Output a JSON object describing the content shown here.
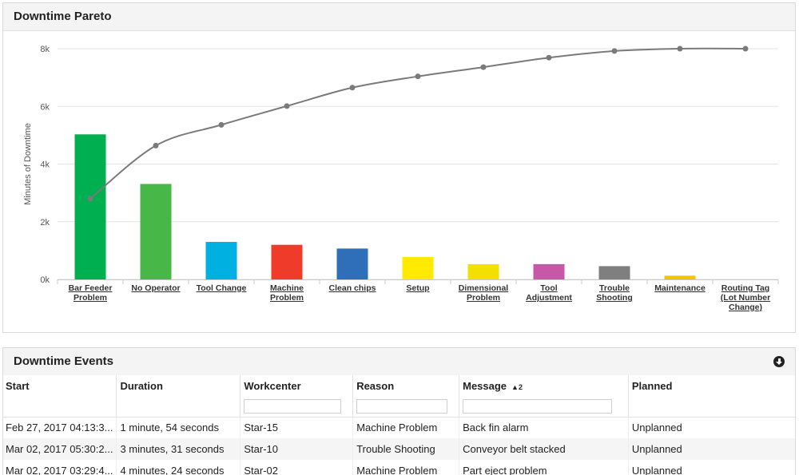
{
  "pareto": {
    "title": "Downtime Pareto",
    "chart_data": {
      "type": "bar",
      "ylabel": "Minutes of Downtime",
      "ylim": [
        0,
        8000
      ],
      "yticks": [
        0,
        2000,
        4000,
        6000,
        8000
      ],
      "ytick_labels": [
        "0k",
        "2k",
        "4k",
        "6k",
        "8k"
      ],
      "grid": true,
      "categories": [
        [
          "Bar Feeder",
          "Problem"
        ],
        [
          "No Operator"
        ],
        [
          "Tool Change"
        ],
        [
          "Machine",
          "Problem"
        ],
        [
          "Clean chips"
        ],
        [
          "Setup"
        ],
        [
          "Dimensional",
          "Problem"
        ],
        [
          "Tool",
          "Adjustment"
        ],
        [
          "Trouble",
          "Shooting"
        ],
        [
          "Maintenance"
        ],
        [
          "Routing Tag",
          "(Lot Number",
          "Change)"
        ]
      ],
      "values": [
        5030,
        3310,
        1300,
        1200,
        1070,
        780,
        530,
        530,
        460,
        130,
        0
      ],
      "colors": [
        "#00b050",
        "#47b747",
        "#00b0e0",
        "#ee3b2a",
        "#2f6eb8",
        "#ffea00",
        "#f1e000",
        "#c957a8",
        "#7f7f7f",
        "#f5c400",
        "#cccccc"
      ],
      "cumulative": [
        2800,
        4640,
        5360,
        6010,
        6650,
        7040,
        7360,
        7690,
        7920,
        8000,
        8000
      ],
      "line_color": "#7a7a7a"
    }
  },
  "events": {
    "title": "Downtime Events",
    "columns": [
      {
        "label": "Start",
        "filter": false
      },
      {
        "label": "Duration",
        "filter": false
      },
      {
        "label": "Workcenter",
        "filter": true
      },
      {
        "label": "Reason",
        "filter": true
      },
      {
        "label": "Message",
        "filter": true,
        "sort": "▲2"
      },
      {
        "label": "Planned",
        "filter": false
      }
    ],
    "rows": [
      [
        "Feb 27, 2017 04:13:3...",
        "1 minute, 54 seconds",
        "Star-15",
        "Machine Problem",
        "Back fin alarm",
        "Unplanned"
      ],
      [
        "Mar 02, 2017 05:30:2...",
        "3 minutes, 31 seconds",
        "Star-10",
        "Trouble Shooting",
        "Conveyor belt stacked",
        "Unplanned"
      ],
      [
        "Mar 02, 2017 03:29:4...",
        "4 minutes, 24 seconds",
        "Star-02",
        "Machine Problem",
        "Part eject problem",
        "Unplanned"
      ]
    ]
  }
}
